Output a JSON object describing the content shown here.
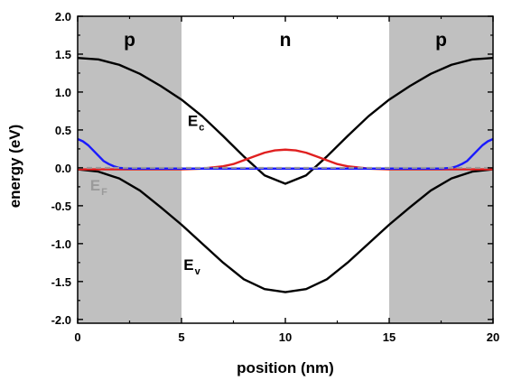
{
  "chart_data": {
    "type": "line",
    "xlabel": "position (nm)",
    "ylabel": "energy (eV)",
    "xlim": [
      0,
      20
    ],
    "ylim": [
      -2.05,
      2.0
    ],
    "xticks": [
      0,
      5,
      10,
      15,
      20
    ],
    "yticks": [
      -2.0,
      -1.5,
      -1.0,
      -0.5,
      0.0,
      0.5,
      1.0,
      1.5,
      2.0
    ],
    "grid": false,
    "regions": [
      {
        "label": "p",
        "x0": 0,
        "x1": 5,
        "fill": "#c0c0c0"
      },
      {
        "label": "n",
        "x0": 5,
        "x1": 15,
        "fill": "#ffffff"
      },
      {
        "label": "p",
        "x0": 15,
        "x1": 20,
        "fill": "#c0c0c0"
      }
    ],
    "annotations": [
      {
        "main": "E",
        "sub": "c",
        "x": 5.3,
        "y": 0.55,
        "color": "#000000"
      },
      {
        "main": "E",
        "sub": "v",
        "x": 5.1,
        "y": -1.35,
        "color": "#000000"
      },
      {
        "main": "E",
        "sub": "F",
        "x": 0.6,
        "y": -0.3,
        "color": "#9a9a9a"
      }
    ],
    "series": [
      {
        "color": "#000000",
        "style": "solid",
        "x": [
          0,
          1,
          2,
          3,
          4,
          5,
          6,
          7,
          8,
          9,
          10,
          11,
          12,
          13,
          14,
          15,
          16,
          17,
          18,
          19,
          20
        ],
        "y": [
          1.45,
          1.43,
          1.36,
          1.24,
          1.08,
          0.9,
          0.68,
          0.42,
          0.15,
          -0.1,
          -0.21,
          -0.1,
          0.15,
          0.42,
          0.68,
          0.9,
          1.08,
          1.24,
          1.36,
          1.43,
          1.45
        ]
      },
      {
        "color": "#000000",
        "style": "solid",
        "x": [
          0,
          1,
          2,
          3,
          4,
          5,
          6,
          7,
          8,
          9,
          10,
          11,
          12,
          13,
          14,
          15,
          16,
          17,
          18,
          19,
          20
        ],
        "y": [
          -0.02,
          -0.05,
          -0.14,
          -0.3,
          -0.52,
          -0.75,
          -1.0,
          -1.25,
          -1.47,
          -1.6,
          -1.64,
          -1.6,
          -1.47,
          -1.25,
          -1.0,
          -0.75,
          -0.52,
          -0.3,
          -0.14,
          -0.05,
          -0.02
        ]
      },
      {
        "color": "#e02020",
        "style": "solid",
        "x": [
          0,
          1,
          2,
          3,
          4,
          5,
          6,
          7,
          7.5,
          8,
          8.5,
          9,
          9.5,
          10,
          10.5,
          11,
          11.5,
          12,
          12.5,
          13,
          14,
          15,
          16,
          17,
          18,
          19,
          20
        ],
        "y": [
          -0.02,
          -0.02,
          -0.02,
          -0.02,
          -0.02,
          -0.02,
          -0.01,
          0.02,
          0.05,
          0.1,
          0.15,
          0.2,
          0.23,
          0.24,
          0.23,
          0.2,
          0.15,
          0.1,
          0.05,
          0.02,
          -0.01,
          -0.02,
          -0.02,
          -0.02,
          -0.02,
          -0.02,
          -0.02
        ]
      },
      {
        "color": "#1a1aff",
        "style": "solid",
        "x": [
          0,
          0.25,
          0.5,
          0.75,
          1,
          1.25,
          1.5,
          1.75,
          2,
          2.5,
          3,
          4,
          5,
          10,
          15,
          16,
          17,
          17.5,
          18,
          18.25,
          18.5,
          18.75,
          19,
          19.25,
          19.5,
          19.75,
          20
        ],
        "y": [
          0.38,
          0.35,
          0.3,
          0.23,
          0.16,
          0.09,
          0.05,
          0.02,
          0.0,
          -0.01,
          -0.01,
          -0.01,
          -0.01,
          -0.01,
          -0.01,
          -0.01,
          -0.01,
          -0.01,
          0.0,
          0.02,
          0.05,
          0.09,
          0.16,
          0.23,
          0.3,
          0.35,
          0.38
        ]
      },
      {
        "color": "#9a9a9a",
        "style": "dashed",
        "x": [
          0,
          20
        ],
        "y": [
          0.0,
          0.0
        ]
      }
    ]
  }
}
